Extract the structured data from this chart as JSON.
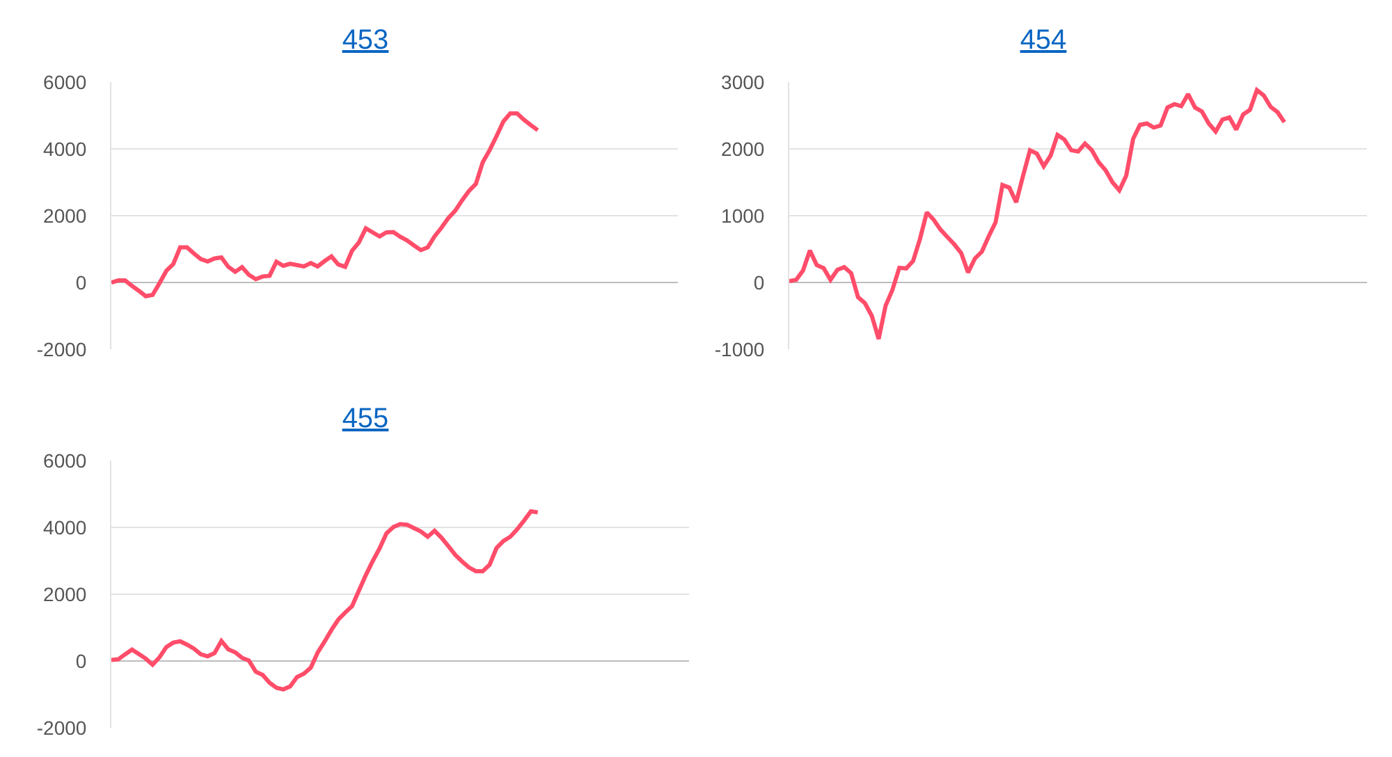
{
  "chart_data": [
    {
      "type": "line",
      "title": "453",
      "color": "#ff4d6a",
      "ylim": [
        -2000,
        6000
      ],
      "yticks": [
        -2000,
        0,
        2000,
        4000,
        6000
      ],
      "grid": "y",
      "tick_labels": "y",
      "categories": [
        null,
        null,
        null,
        null,
        null,
        null,
        null,
        null,
        null,
        null,
        null,
        null,
        null,
        null,
        null,
        null,
        null,
        null,
        null,
        null,
        null,
        null,
        null,
        null,
        null,
        null,
        null,
        null,
        null,
        null,
        null,
        null,
        null,
        null,
        null,
        null,
        null,
        null,
        null,
        null,
        null,
        null,
        null,
        null,
        null,
        null,
        null,
        null,
        null,
        null,
        null,
        null,
        null,
        null,
        null,
        null,
        null,
        null,
        null,
        null,
        null,
        null,
        null,
        null,
        null,
        null,
        null,
        null,
        null,
        null,
        null,
        null,
        null,
        null,
        null,
        null,
        null,
        null,
        null,
        null,
        null,
        null,
        null,
        null,
        null
      ],
      "values": [
        0,
        60,
        60,
        -100,
        -250,
        -410,
        -370,
        -20,
        350,
        550,
        1050,
        1050,
        870,
        700,
        630,
        720,
        750,
        470,
        320,
        460,
        230,
        100,
        180,
        200,
        620,
        500,
        560,
        520,
        480,
        580,
        480,
        640,
        780,
        540,
        470,
        950,
        1200,
        1620,
        1500,
        1380,
        1500,
        1510,
        1370,
        1260,
        1110,
        970,
        1050,
        1380,
        1640,
        1930,
        2150,
        2460,
        2740,
        2950,
        3600,
        3960,
        4380,
        4820,
        5060,
        5060,
        4870,
        4710,
        4560,
        null,
        null,
        null,
        null,
        null,
        null,
        null,
        null,
        null,
        null,
        null,
        null,
        null,
        null,
        null,
        null,
        null,
        null,
        null,
        null,
        null,
        null
      ]
    },
    {
      "type": "line",
      "title": "454",
      "color": "#ff4d6a",
      "ylim": [
        -1000,
        3000
      ],
      "yticks": [
        -1000,
        0,
        1000,
        2000,
        3000
      ],
      "grid": "y",
      "tick_labels": "y",
      "categories": [
        null,
        null,
        null,
        null,
        null,
        null,
        null,
        null,
        null,
        null,
        null,
        null,
        null,
        null,
        null,
        null,
        null,
        null,
        null,
        null,
        null,
        null,
        null,
        null,
        null,
        null,
        null,
        null,
        null,
        null,
        null,
        null,
        null,
        null,
        null,
        null,
        null,
        null,
        null,
        null,
        null,
        null,
        null,
        null,
        null,
        null,
        null,
        null,
        null,
        null,
        null,
        null,
        null,
        null,
        null,
        null,
        null,
        null,
        null,
        null,
        null,
        null,
        null,
        null,
        null,
        null,
        null,
        null,
        null,
        null,
        null,
        null,
        null,
        null,
        null,
        null,
        null,
        null,
        null,
        null,
        null,
        null,
        null,
        null,
        null
      ],
      "values": [
        20,
        40,
        180,
        480,
        260,
        215,
        40,
        190,
        230,
        140,
        -220,
        -310,
        -500,
        -845,
        -350,
        -110,
        220,
        210,
        320,
        650,
        1050,
        940,
        790,
        680,
        570,
        440,
        150,
        360,
        460,
        690,
        900,
        1460,
        1420,
        1200,
        1600,
        1980,
        1930,
        1740,
        1900,
        2210,
        2140,
        1980,
        1960,
        2080,
        1980,
        1800,
        1680,
        1500,
        1380,
        1600,
        2150,
        2360,
        2380,
        2320,
        2350,
        2620,
        2670,
        2640,
        2820,
        2620,
        2560,
        2380,
        2260,
        2440,
        2470,
        2290,
        2515,
        2585,
        2880,
        2800,
        2630,
        2550,
        2400,
        null,
        null,
        null,
        null,
        null,
        null,
        null,
        null,
        null,
        null,
        null,
        null
      ]
    },
    {
      "type": "line",
      "title": "455",
      "color": "#ff4d6a",
      "ylim": [
        -2000,
        6000
      ],
      "yticks": [
        -2000,
        0,
        2000,
        4000,
        6000
      ],
      "grid": "y",
      "tick_labels": "y",
      "categories": [
        null,
        null,
        null,
        null,
        null,
        null,
        null,
        null,
        null,
        null,
        null,
        null,
        null,
        null,
        null,
        null,
        null,
        null,
        null,
        null,
        null,
        null,
        null,
        null,
        null,
        null,
        null,
        null,
        null,
        null,
        null,
        null,
        null,
        null,
        null,
        null,
        null,
        null,
        null,
        null,
        null,
        null,
        null,
        null,
        null,
        null,
        null,
        null,
        null,
        null,
        null,
        null,
        null,
        null,
        null,
        null,
        null,
        null,
        null,
        null,
        null,
        null,
        null,
        null,
        null,
        null,
        null,
        null,
        null,
        null,
        null,
        null,
        null,
        null,
        null,
        null,
        null,
        null,
        null,
        null,
        null,
        null,
        null,
        null,
        null
      ],
      "values": [
        30,
        50,
        200,
        340,
        210,
        70,
        -110,
        110,
        420,
        550,
        590,
        490,
        370,
        200,
        140,
        235,
        600,
        350,
        260,
        95,
        10,
        -320,
        -415,
        -650,
        -800,
        -850,
        -760,
        -480,
        -380,
        -200,
        250,
        580,
        930,
        1240,
        1450,
        1640,
        2110,
        2570,
        2990,
        3370,
        3820,
        4010,
        4100,
        4080,
        3980,
        3880,
        3720,
        3900,
        3690,
        3440,
        3180,
        2980,
        2800,
        2690,
        2690,
        2880,
        3380,
        3590,
        3720,
        3940,
        4200,
        4480,
        4450,
        null,
        null,
        null,
        null,
        null,
        null,
        null,
        null,
        null,
        null,
        null,
        null,
        null,
        null,
        null,
        null,
        null,
        null,
        null,
        null,
        null,
        null
      ]
    }
  ]
}
